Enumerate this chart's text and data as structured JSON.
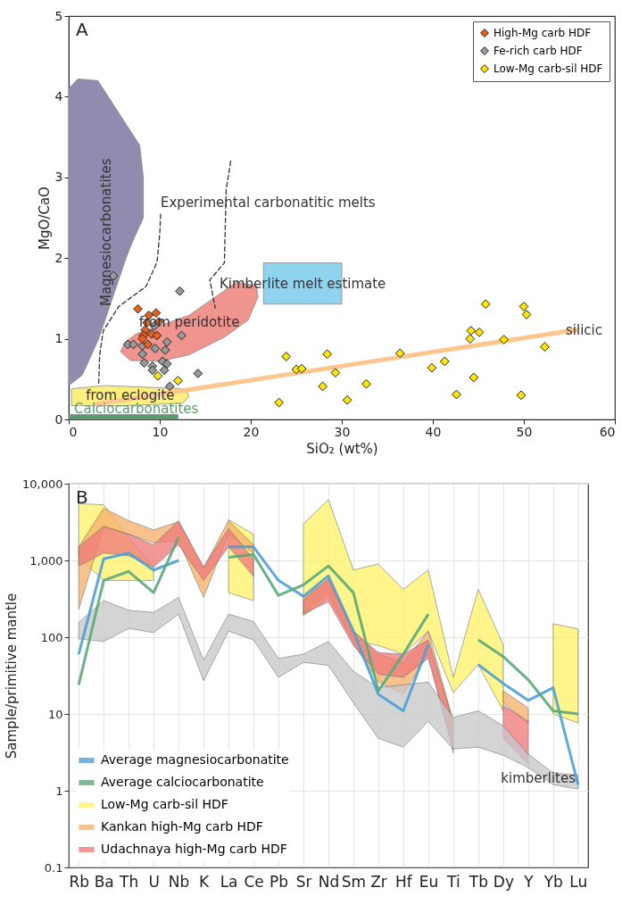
{
  "chart_data": [
    {
      "type": "scatter",
      "xlabel": "SiO₂ (wt%)",
      "ylabel": "MgO/CaO",
      "xlim": [
        0,
        60
      ],
      "ylim": [
        0,
        5
      ],
      "xticks": [
        0,
        10,
        20,
        30,
        40,
        50,
        60
      ],
      "yticks": [
        0,
        1,
        2,
        3,
        4,
        5
      ],
      "grid": false,
      "legend": "top right",
      "series": [
        {
          "type": "area",
          "name": "Magnesiocarbonatites",
          "color": "#8f8cb0",
          "x": [
            0,
            0,
            1,
            3.2,
            5.5,
            7.8,
            8.2,
            8.2,
            7,
            6.3,
            4.5,
            3.3,
            1.5
          ],
          "values": [
            0.42,
            4.1,
            4.22,
            4.2,
            3.8,
            3.4,
            3.0,
            2.5,
            2.2,
            2.0,
            1.4,
            1.0,
            0.55
          ]
        },
        {
          "type": "area",
          "name": "Calciocarbonatites",
          "color": "#5b9a6c",
          "x": [
            0,
            12,
            12,
            0
          ],
          "values": [
            0,
            0,
            0.06,
            0.06
          ]
        },
        {
          "type": "area",
          "name": "from eclogite",
          "color": "#fbef80",
          "x": [
            0.3,
            4,
            12.9,
            13.2,
            12.5,
            6,
            0.3
          ],
          "values": [
            0.38,
            0.42,
            0.38,
            0.28,
            0.2,
            0.17,
            0.17
          ]
        },
        {
          "type": "area",
          "name": "from peridotite",
          "color": "#f0948f",
          "x": [
            5.7,
            6.2,
            7.4,
            13.2,
            16.5,
            18.4,
            20.6,
            20.8,
            19.7,
            17.1,
            13.2,
            10,
            6.8
          ],
          "values": [
            0.84,
            0.96,
            1.06,
            1.29,
            1.55,
            1.7,
            1.66,
            1.52,
            1.23,
            1.02,
            0.8,
            0.72,
            0.73
          ]
        },
        {
          "type": "area",
          "name": "Kimberlite melt estimate",
          "color": "#8fd3ef",
          "x": [
            21.4,
            30,
            30,
            21.4
          ],
          "values": [
            1.43,
            1.43,
            1.94,
            1.94
          ]
        },
        {
          "type": "line",
          "name": "Experimental carbonatitic melts",
          "color": "#333333",
          "line_style": "dashed",
          "x": [
            3.3,
            3.4,
            3.8,
            5.5,
            8.5,
            9.7,
            10,
            10.1
          ],
          "values": [
            0.45,
            0.8,
            1.1,
            1.4,
            1.65,
            1.95,
            2.3,
            2.55
          ]
        },
        {
          "type": "line",
          "color": "#333333",
          "line_style": "dashed",
          "x": [
            17.8,
            17.3,
            17.1,
            15.5,
            16.1
          ],
          "values": [
            3.2,
            2.85,
            1.94,
            1.73,
            1.38
          ]
        },
        {
          "type": "line",
          "color": "#fcc78f",
          "x": [
            3,
            55.7
          ],
          "values": [
            0.19,
            1.11
          ]
        },
        {
          "type": "scatter",
          "name": "High-Mg carb HDF",
          "color": "#e8641e",
          "marker": "diamond",
          "x": [
            7.6,
            8.8,
            9.6,
            9.9,
            8.6,
            8.4,
            8.2,
            9.1,
            9.7,
            8.1,
            8.7
          ],
          "values": [
            1.37,
            1.29,
            1.32,
            1.21,
            1.2,
            1.11,
            1.04,
            1.06,
            1.04,
            1.0,
            0.93
          ]
        },
        {
          "type": "scatter",
          "name": "Fe-rich carb HDF",
          "color": "#999999",
          "marker": "diamond",
          "x": [
            4.9,
            12.2,
            12.4,
            9.4,
            6.5,
            7.1,
            8.1,
            9.5,
            10.8,
            10.6,
            8.1,
            8.3,
            9.2,
            10.3,
            10.8,
            9.2,
            10.5,
            14.2,
            11.1
          ],
          "values": [
            1.78,
            1.59,
            1.04,
            1.16,
            0.93,
            0.93,
            0.91,
            0.88,
            0.96,
            0.86,
            0.81,
            0.7,
            0.66,
            0.72,
            0.69,
            0.61,
            0.61,
            0.57,
            0.41
          ]
        },
        {
          "type": "scatter",
          "name": "Low-Mg carb-sil HDF",
          "color": "#ffe600",
          "marker": "diamond",
          "x": [
            9.8,
            12.0,
            23.1,
            23.9,
            25.0,
            25.6,
            27.9,
            28.4,
            29.3,
            30.6,
            32.7,
            36.4,
            39.9,
            41.3,
            42.6,
            44.1,
            44.2,
            45.1,
            44.5,
            45.8,
            47.8,
            50.0,
            50.3,
            49.7,
            52.3
          ],
          "values": [
            0.54,
            0.48,
            0.21,
            0.78,
            0.62,
            0.63,
            0.41,
            0.81,
            0.58,
            0.24,
            0.44,
            0.82,
            0.64,
            0.72,
            0.31,
            1.0,
            1.1,
            1.08,
            0.52,
            1.43,
            0.99,
            1.4,
            1.3,
            0.3,
            0.9
          ]
        }
      ],
      "annotations": [
        "A",
        "silicic"
      ]
    },
    {
      "type": "line",
      "ylabel": "Sample/primitive mantle",
      "log": true,
      "grid": true,
      "legend": "bottom left",
      "ylim": [
        0.1,
        10000
      ],
      "yticks": [
        0.1,
        1,
        10,
        100,
        {
          "value": 1000,
          "label": "1,000"
        },
        {
          "value": 10000,
          "label": "10,000"
        }
      ],
      "categories": [
        "Rb",
        "Ba",
        "Th",
        "U",
        "Nb",
        "K",
        "La",
        "Ce",
        "Pb",
        "Sr",
        "Nd",
        "Sm",
        "Zr",
        "Hf",
        "Eu",
        "Ti",
        "Tb",
        "Dy",
        "Y",
        "Yb",
        "Lu"
      ],
      "series": [
        {
          "type": "line",
          "name": "Average magnesiocarbonatite",
          "color": "#4e9fd6",
          "values": [
            60,
            1050,
            1250,
            750,
            1000,
            null,
            1500,
            1500,
            550,
            340,
            630,
            120,
            18,
            11,
            81,
            null,
            44,
            25,
            15,
            22,
            1.2
          ]
        },
        {
          "type": "line",
          "name": "Average calciocarbonatite",
          "color": "#5aa878",
          "values": [
            24,
            550,
            720,
            380,
            2000,
            null,
            1100,
            1200,
            350,
            480,
            850,
            380,
            20,
            60,
            200,
            null,
            92,
            56,
            28,
            11,
            10
          ]
        },
        {
          "type": "area",
          "name": "Low-Mg carb-sil HDF",
          "color": "#fff36b",
          "values": [
            null,
            null,
            null,
            null,
            null,
            null,
            null,
            null,
            null,
            null,
            null,
            null,
            null,
            null,
            null,
            null,
            null,
            null,
            null,
            null,
            null
          ],
          "lower": [
            1100,
            550,
            550,
            550,
            null,
            null,
            380,
            300,
            null,
            190,
            330,
            92,
            78,
            60,
            120,
            19,
            44,
            11,
            null,
            10,
            7.6
          ],
          "upper": [
            5500,
            5300,
            2000,
            820,
            null,
            null,
            3400,
            2200,
            null,
            3000,
            6200,
            750,
            900,
            420,
            750,
            30,
            420,
            80,
            null,
            150,
            128
          ]
        },
        {
          "type": "area",
          "name": "Kankan high-Mg carb HDF",
          "color": "#f6b26b",
          "values": [
            null,
            null,
            null,
            null,
            null,
            null,
            null,
            null,
            null,
            null,
            null,
            null,
            null,
            null,
            null,
            null,
            null,
            null,
            null,
            null,
            null
          ],
          "lower": [
            230,
            2700,
            2200,
            1700,
            1800,
            330,
            2200,
            1250,
            null,
            200,
            380,
            83,
            26,
            18,
            60,
            3.1,
            null,
            14,
            7.5,
            null,
            null
          ],
          "upper": [
            1500,
            4800,
            3300,
            2500,
            3200,
            800,
            3300,
            1600,
            null,
            330,
            560,
            120,
            60,
            47,
            120,
            8,
            null,
            20,
            12,
            null,
            null
          ]
        },
        {
          "type": "area",
          "name": "Udachnaya high-Mg carb HDF",
          "color": "#f07c7c",
          "values": [
            null,
            null,
            null,
            null,
            null,
            null,
            null,
            null,
            null,
            null,
            null,
            null,
            null,
            null,
            null,
            null,
            null,
            null,
            null,
            null,
            null
          ],
          "lower": [
            850,
            1250,
            1150,
            820,
            1600,
            550,
            1500,
            620,
            null,
            200,
            290,
            78,
            33,
            30,
            53,
            3.5,
            null,
            4.8,
            2.2,
            null,
            null
          ],
          "upper": [
            1500,
            2800,
            2200,
            1600,
            3300,
            820,
            2600,
            1050,
            null,
            300,
            580,
            120,
            63,
            60,
            92,
            8,
            null,
            13,
            8,
            null,
            null
          ]
        },
        {
          "type": "area",
          "color": "#c8c8ca",
          "values": [
            null,
            null,
            null,
            null,
            null,
            null,
            null,
            null,
            null,
            null,
            null,
            null,
            null,
            null,
            null,
            null,
            null,
            null,
            null,
            null,
            null
          ],
          "lower": [
            95,
            88,
            130,
            115,
            200,
            27,
            120,
            92,
            30,
            47,
            43,
            14,
            4.8,
            3.7,
            8,
            3.5,
            3.7,
            2.9,
            2,
            1.2,
            1.05
          ],
          "upper": [
            155,
            300,
            225,
            210,
            330,
            50,
            200,
            160,
            53,
            60,
            88,
            36,
            22,
            24,
            26,
            9,
            11,
            7,
            3,
            1.7,
            1.6
          ]
        }
      ],
      "annotations": [
        "B",
        "kimberlites"
      ]
    }
  ]
}
